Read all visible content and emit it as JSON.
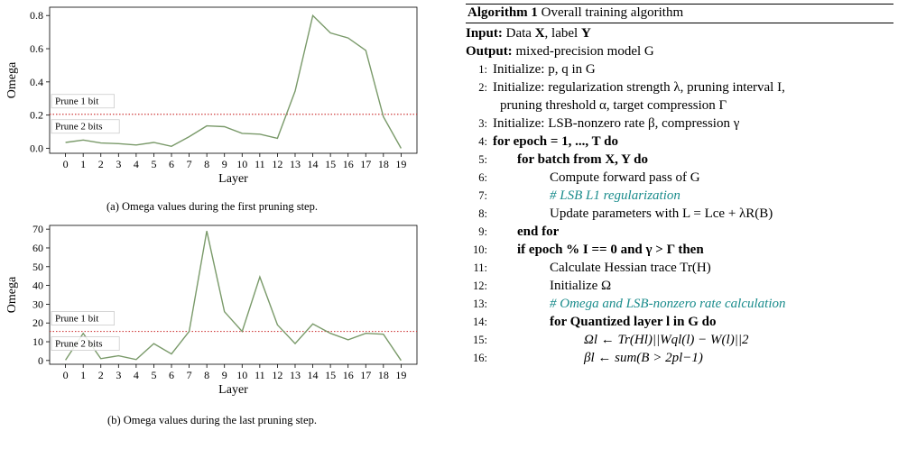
{
  "charts": [
    {
      "type": "line",
      "x": [
        0,
        1,
        2,
        3,
        4,
        5,
        6,
        7,
        8,
        9,
        10,
        11,
        12,
        13,
        14,
        15,
        16,
        17,
        18,
        19
      ],
      "values": [
        0.035,
        0.05,
        0.032,
        0.028,
        0.02,
        0.035,
        0.012,
        0.07,
        0.135,
        0.13,
        0.09,
        0.085,
        0.06,
        0.345,
        0.8,
        0.695,
        0.665,
        0.59,
        0.19,
        0.0
      ],
      "ylim": [
        -0.03,
        0.85
      ],
      "yticks": [
        "0.0",
        "0.2",
        "0.4",
        "0.6",
        "0.8"
      ],
      "ytick_values": [
        0,
        0.2,
        0.4,
        0.6,
        0.8
      ],
      "threshold": 0.205,
      "xlabel": "Layer",
      "ylabel": "Omega",
      "label_prune1": "Prune 1 bit",
      "label_prune2": "Prune 2 bits",
      "caption": "(a) Omega values during the first pruning step.",
      "line_color": "#7a9a6a",
      "threshold_color": "#d04040"
    },
    {
      "type": "line",
      "x": [
        0,
        1,
        2,
        3,
        4,
        5,
        6,
        7,
        8,
        9,
        10,
        11,
        12,
        13,
        14,
        15,
        16,
        17,
        18,
        19
      ],
      "values": [
        0.2,
        14.5,
        1.0,
        2.5,
        0.5,
        9.0,
        3.5,
        15.5,
        69.0,
        26.0,
        15.5,
        44.5,
        19.0,
        9.0,
        19.5,
        14.5,
        11.0,
        14.5,
        14.0,
        0.0
      ],
      "ylim": [
        -2,
        72
      ],
      "yticks": [
        "0",
        "10",
        "20",
        "30",
        "40",
        "50",
        "60",
        "70"
      ],
      "ytick_values": [
        0,
        10,
        20,
        30,
        40,
        50,
        60,
        70
      ],
      "threshold": 15.5,
      "xlabel": "Layer",
      "ylabel": "Omega",
      "label_prune1": "Prune 1 bit",
      "label_prune2": "Prune 2 bits",
      "caption": "(b) Omega values during the last pruning step.",
      "line_color": "#7a9a6a",
      "threshold_color": "#d04040"
    }
  ],
  "algorithm": {
    "title_bold": "Algorithm 1",
    "title_rest": "Overall training algorithm",
    "input_kw": "Input:",
    "input_text": "Data",
    "input_X": "X",
    "input_mid": ", label",
    "input_Y": "Y",
    "output_kw": "Output:",
    "output_text": "mixed-precision model G",
    "lines": {
      "l1": "Initialize: p, q in G",
      "l2a": "Initialize: regularization strength λ, pruning interval I,",
      "l2b": "pruning threshold α, target compression Γ",
      "l3": "Initialize: LSB-nonzero rate β, compression γ",
      "l4": "for epoch = 1, ..., T do",
      "l5": "for batch from X, Y do",
      "l6": "Compute forward pass of G",
      "l7": "# LSB L1 regularization",
      "l8": "Update parameters with L = Lce + λR(B)",
      "l9": "end for",
      "l10": "if epoch % I == 0 and γ > Γ then",
      "l11": "Calculate Hessian trace Tr(H)",
      "l12": "Initialize Ω",
      "l13": "# Omega and LSB-nonzero rate calculation",
      "l14": "for Quantized layer l in G do",
      "l15": "Ωl ← Tr(Hl)||Wql(l) − W(l)||2",
      "l16": "βl ← sum(B > 2pl−1)"
    }
  }
}
